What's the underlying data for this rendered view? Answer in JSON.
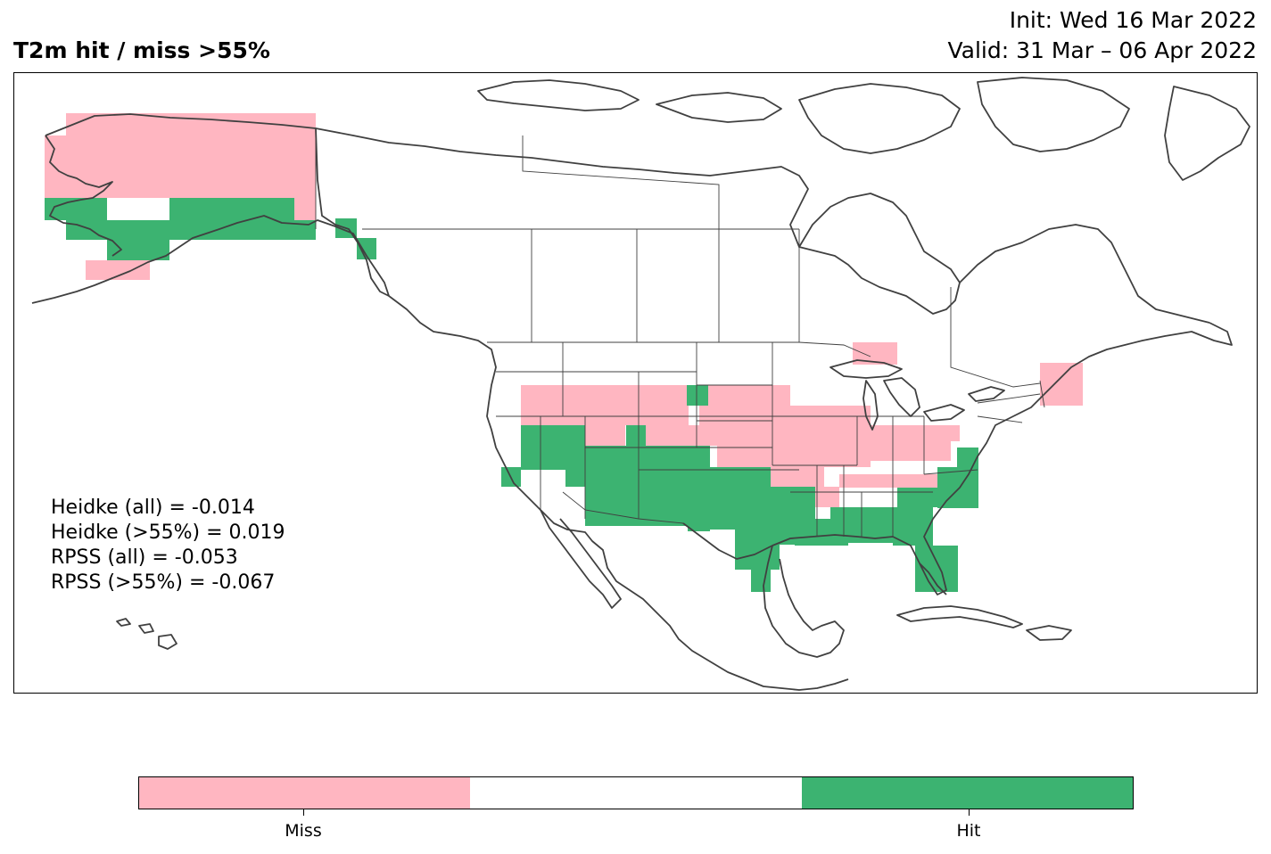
{
  "header": {
    "title": "T2m hit / miss  >55%",
    "init": "Init: Wed 16 Mar 2022",
    "valid": "Valid: 31 Mar – 06 Apr 2022"
  },
  "stats": [
    "Heidke (all) = -0.014",
    "Heidke (>55%) = 0.019",
    "RPSS (all) = -0.053",
    "RPSS (>55%) = -0.067"
  ],
  "colorbar": {
    "colors": [
      "#ffb6c1",
      "#ffffff",
      "#3cb371"
    ],
    "labels": [
      "Miss",
      "Hit"
    ]
  },
  "map": {
    "colors": {
      "miss": "#ffb6c1",
      "hit": "#3cb371",
      "coast": "#404040"
    },
    "region": "North America"
  }
}
